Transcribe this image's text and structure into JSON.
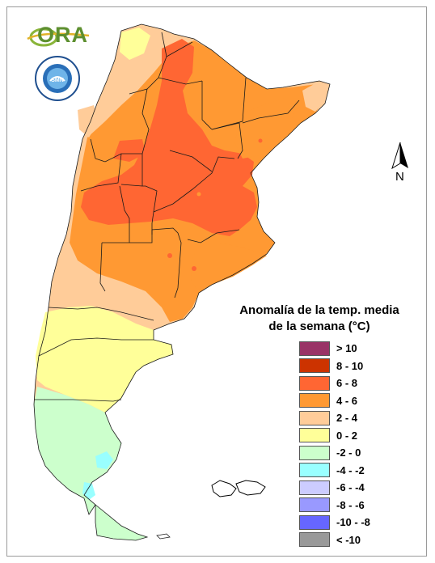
{
  "brand": {
    "ora_logo_text": "ORA",
    "smn_logo_text": "SERVICIO METEOROLÓGICO NACIONAL · ARGENTINA",
    "smn_center_text": "SMN"
  },
  "compass": {
    "label": "N"
  },
  "legend": {
    "title_line1": "Anomalía de la temp. media",
    "title_line2": "de la semana (°C)",
    "items": [
      {
        "label": "> 10",
        "color": "#993366"
      },
      {
        "label": "8 - 10",
        "color": "#cc3300"
      },
      {
        "label": "6 - 8",
        "color": "#ff6633"
      },
      {
        "label": "4 - 6",
        "color": "#ff9933"
      },
      {
        "label": "2 - 4",
        "color": "#ffcc99"
      },
      {
        "label": "0 - 2",
        "color": "#ffff99"
      },
      {
        "label": "-2 - 0",
        "color": "#ccffcc"
      },
      {
        "label": "-4 - -2",
        "color": "#99ffff"
      },
      {
        "label": "-6 - -4",
        "color": "#ccccff"
      },
      {
        "label": "-8 - -6",
        "color": "#9999ff"
      },
      {
        "label": "-10 - -8",
        "color": "#6666ff"
      },
      {
        "label": "< -10",
        "color": "#999999"
      }
    ]
  }
}
